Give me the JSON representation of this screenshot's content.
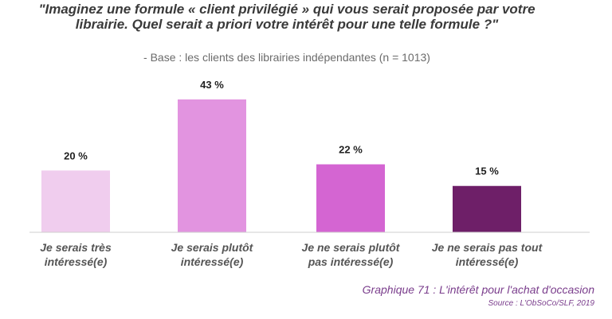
{
  "chart_data": {
    "type": "bar",
    "title": "\"Imaginez une formule « client privilégié » qui vous serait proposée par votre librairie. Quel serait a priori votre intérêt pour une telle formule ?\"",
    "subtitle": "- Base : les clients des librairies indépendantes (n = 1013)",
    "categories": [
      [
        "Je serais très",
        "intéressé(e)"
      ],
      [
        "Je serais plutôt",
        "intéressé(e)"
      ],
      [
        "Je ne serais plutôt",
        "pas intéressé(e)"
      ],
      [
        "Je ne serais pas tout",
        "intéressé(e)"
      ]
    ],
    "values": [
      20,
      43,
      22,
      15
    ],
    "value_labels": [
      "20 %",
      "43 %",
      "22 %",
      "15 %"
    ],
    "bar_colors": [
      "#f0cdee",
      "#e294e0",
      "#d465d2",
      "#6e1f68"
    ],
    "ylim": [
      0,
      43
    ],
    "grid": false,
    "legend": "none",
    "xlabel": "",
    "ylabel": ""
  },
  "caption": "Graphique 71 : L'intérêt pour l'achat d'occasion",
  "source": "Source : L'ObSoCo/SLF, 2019"
}
